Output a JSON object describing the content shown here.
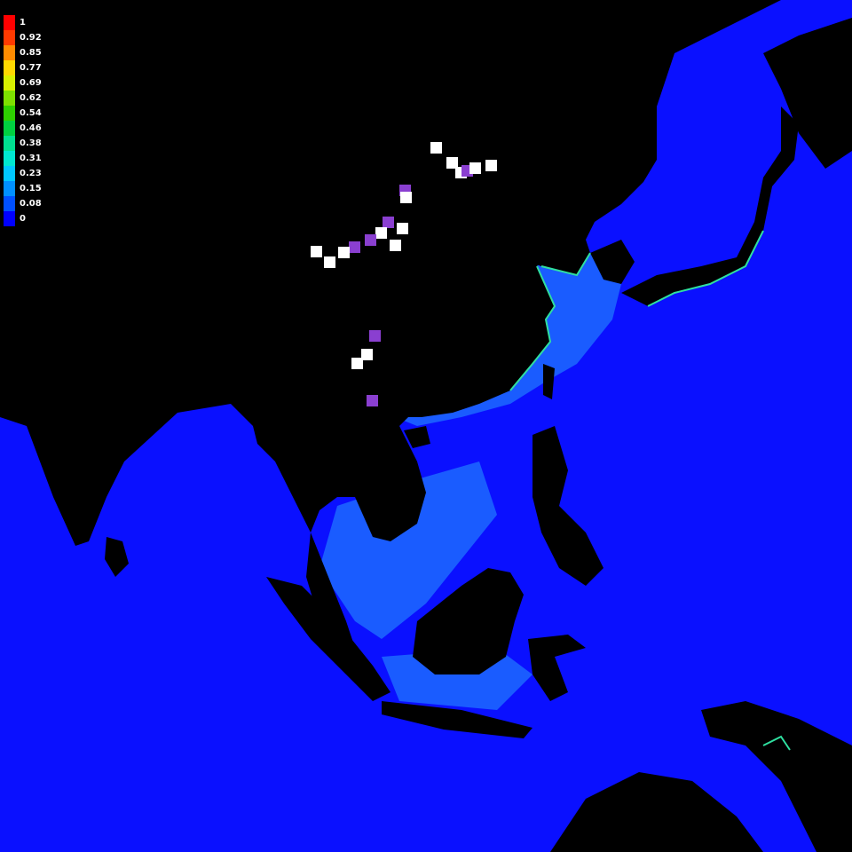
{
  "legend": {
    "items": [
      {
        "label": "1",
        "color": "#ff0000"
      },
      {
        "label": "0.92",
        "color": "#ff3a00"
      },
      {
        "label": "0.85",
        "color": "#ff8c00"
      },
      {
        "label": "0.77",
        "color": "#ffd800"
      },
      {
        "label": "0.69",
        "color": "#d8f000"
      },
      {
        "label": "0.62",
        "color": "#7ee000"
      },
      {
        "label": "0.54",
        "color": "#2ed000"
      },
      {
        "label": "0.46",
        "color": "#00d040"
      },
      {
        "label": "0.38",
        "color": "#00e090"
      },
      {
        "label": "0.31",
        "color": "#00e8d0"
      },
      {
        "label": "0.23",
        "color": "#00c8ff"
      },
      {
        "label": "0.15",
        "color": "#0090ff"
      },
      {
        "label": "0.08",
        "color": "#0050ff"
      },
      {
        "label": "0",
        "color": "#0000ff"
      }
    ]
  },
  "colors": {
    "ocean": "#0a10ff",
    "shelf": "#1a5cff",
    "land": "#000000",
    "coast_highlight": "#2fe0a0",
    "marker_white": "#ffffff",
    "marker_purple": "#8a3fd0"
  },
  "markers": [
    {
      "type": "white",
      "lon": 126.6,
      "lat": 37.4
    },
    {
      "type": "white",
      "lon": 129.0,
      "lat": 35.2
    },
    {
      "type": "white",
      "lon": 130.4,
      "lat": 33.6
    },
    {
      "type": "purple",
      "lon": 131.3,
      "lat": 34.0
    },
    {
      "type": "white",
      "lon": 132.5,
      "lat": 34.4
    },
    {
      "type": "white",
      "lon": 135.0,
      "lat": 34.7
    },
    {
      "type": "purple",
      "lon": 121.8,
      "lat": 31.0
    },
    {
      "type": "white",
      "lon": 122.0,
      "lat": 29.9
    },
    {
      "type": "purple",
      "lon": 119.3,
      "lat": 26.1
    },
    {
      "type": "white",
      "lon": 121.4,
      "lat": 25.1
    },
    {
      "type": "white",
      "lon": 120.3,
      "lat": 22.6
    },
    {
      "type": "white",
      "lon": 118.1,
      "lat": 24.5
    },
    {
      "type": "purple",
      "lon": 116.6,
      "lat": 23.4
    },
    {
      "type": "purple",
      "lon": 114.1,
      "lat": 22.3
    },
    {
      "type": "white",
      "lon": 112.5,
      "lat": 21.5
    },
    {
      "type": "white",
      "lon": 110.3,
      "lat": 20.0
    },
    {
      "type": "white",
      "lon": 108.3,
      "lat": 21.6
    },
    {
      "type": "purple",
      "lon": 117.2,
      "lat": 8.8
    },
    {
      "type": "white",
      "lon": 116.0,
      "lat": 5.9
    },
    {
      "type": "white",
      "lon": 114.5,
      "lat": 4.6
    },
    {
      "type": "purple",
      "lon": 116.8,
      "lat": -1.2
    }
  ]
}
